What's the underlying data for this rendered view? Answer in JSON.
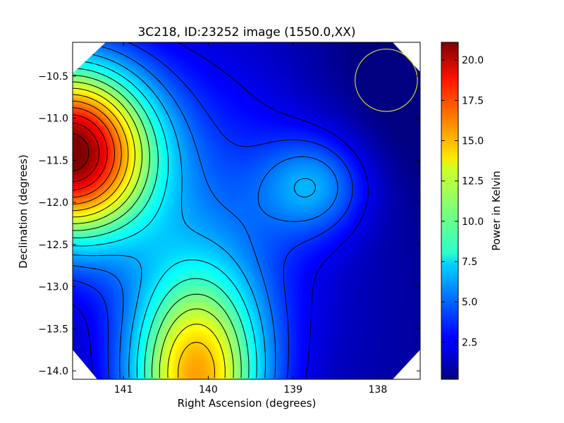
{
  "chart_data": {
    "type": "heatmap",
    "title": "3C218, ID:23252 image (1550.0,XX)",
    "xlabel": "Right Ascension (degrees)",
    "ylabel": "Declination (degrees)",
    "xlim": [
      141.6,
      137.5
    ],
    "ylim": [
      -14.1,
      -10.1
    ],
    "x_axis_direction": "decreasing to the right",
    "x_ticks": [
      141,
      140,
      139,
      138
    ],
    "x_tick_labels": [
      "141",
      "140",
      "139",
      "138"
    ],
    "y_ticks": [
      -10.5,
      -11.0,
      -11.5,
      -12.0,
      -12.5,
      -13.0,
      -13.5,
      -14.0
    ],
    "y_tick_labels": [
      "−10.5",
      "−11.0",
      "−11.5",
      "−12.0",
      "−12.5",
      "−13.0",
      "−13.5",
      "−14.0"
    ],
    "colorbar": {
      "label": "Power in Kelvin",
      "range": [
        0.2,
        21.1
      ],
      "ticks": [
        2.5,
        5.0,
        7.5,
        10.0,
        12.5,
        15.0,
        17.5,
        20.0
      ],
      "tick_labels": [
        "2.5",
        "5.0",
        "7.5",
        "10.0",
        "12.5",
        "15.0",
        "17.5",
        "20.0"
      ],
      "colormap": "jet"
    },
    "contours": {
      "color": "#000000",
      "spacing": 1.3
    },
    "sources": [
      {
        "ra": 141.5,
        "dec": -11.4,
        "peak": 21.0,
        "description": "strong peak at left edge"
      },
      {
        "ra": 140.15,
        "dec": -13.95,
        "peak": 13.8,
        "description": "secondary peak at bottom"
      },
      {
        "ra": 138.7,
        "dec": -11.8,
        "peak": 5.3,
        "description": "weak blob near center-right"
      }
    ],
    "beam_circle": {
      "ra": 137.9,
      "dec": -10.55,
      "radius_deg": 0.37,
      "color": "#d4d42a"
    },
    "grid": false,
    "legend": "none"
  }
}
